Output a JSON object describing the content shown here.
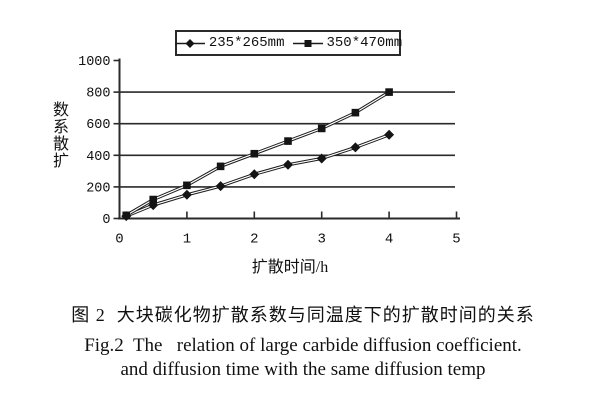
{
  "figure": {
    "caption_zh": "图 2  大块碳化物扩散系数与同温度下的扩散时间的关系",
    "caption_en_line1": "Fig.2  The   relation of large carbide diffusion coefficient.",
    "caption_en_line2": "and diffusion time with the same diffusion temp"
  },
  "chart_data": {
    "type": "line",
    "title": "",
    "xlabel": "扩散时间/h",
    "ylabel_vertical_text": "数系散扩",
    "xlim": [
      0,
      5
    ],
    "ylim": [
      0,
      1000
    ],
    "xticks": [
      0,
      1,
      2,
      3,
      4,
      5
    ],
    "yticks": [
      0,
      200,
      400,
      600,
      800,
      1000
    ],
    "grid": true,
    "legend_position": "top-center",
    "x": [
      0.1,
      0.5,
      1,
      1.5,
      2,
      2.5,
      3,
      3.5,
      4
    ],
    "series": [
      {
        "name": "235*265mm",
        "marker": "diamond",
        "values": [
          15,
          85,
          150,
          205,
          280,
          340,
          380,
          450,
          530
        ]
      },
      {
        "name": "350*470mm",
        "marker": "square",
        "values": [
          20,
          120,
          210,
          330,
          410,
          490,
          570,
          670,
          800
        ]
      }
    ],
    "line_color": "#1c1c1c",
    "marker_color": "#141414",
    "axis_color": "#2a2a2a"
  }
}
